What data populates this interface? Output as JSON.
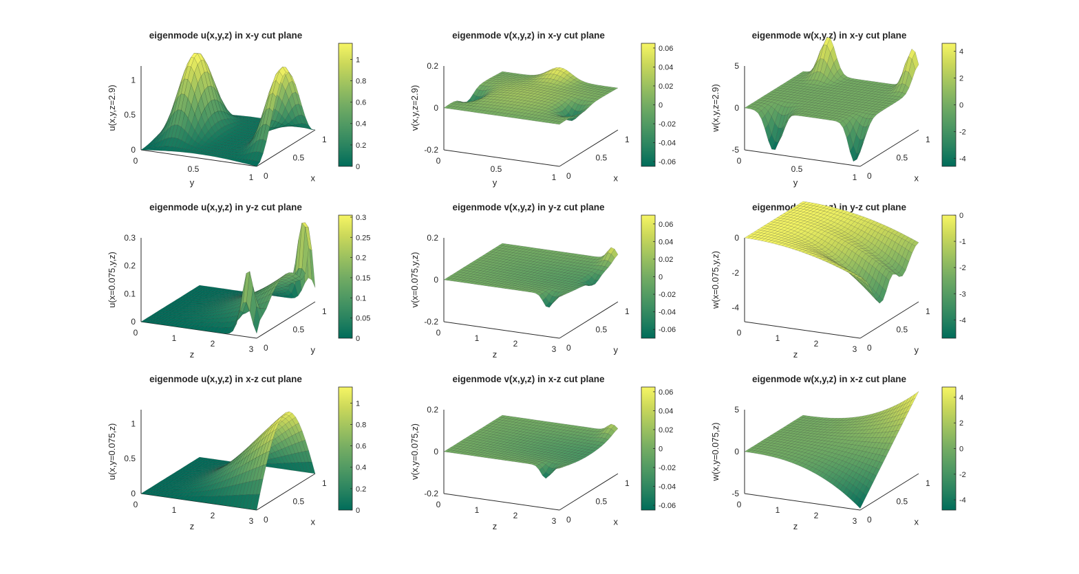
{
  "colors": {
    "colormap": [
      "#006c5a",
      "#2a8460",
      "#4f9963",
      "#74ac63",
      "#9ec25f",
      "#cbd85a",
      "#f6f564"
    ],
    "axis": "#262626",
    "background": "#ffffff"
  },
  "chart_data": [
    {
      "type": "surface",
      "title": "eigenmode u(x,y,z) in x-y cut plane",
      "xlabel": "y",
      "ylabel": "x",
      "zlabel": "u(x,y,z=2.9)",
      "xticks": [
        "0",
        "0.5",
        "1"
      ],
      "yticks": [
        "0",
        "0.5",
        "1"
      ],
      "zticks": [
        "0",
        "0.5",
        "1"
      ],
      "zlim": [
        0,
        1.2
      ],
      "colorbar": {
        "ticks": [
          "0",
          "0.2",
          "0.4",
          "0.6",
          "0.8",
          "1"
        ],
        "min": 0,
        "max": 1.15
      },
      "shape": "u_xy"
    },
    {
      "type": "surface",
      "title": "eigenmode v(x,y,z) in x-y cut plane",
      "xlabel": "y",
      "ylabel": "x",
      "zlabel": "v(x,y,z=2.9)",
      "xticks": [
        "0",
        "0.5",
        "1"
      ],
      "yticks": [
        "0",
        "0.5",
        "1"
      ],
      "zticks": [
        "-0.2",
        "0",
        "0.2"
      ],
      "zlim": [
        -0.2,
        0.2
      ],
      "colorbar": {
        "ticks": [
          "-0.06",
          "-0.04",
          "-0.02",
          "0",
          "0.02",
          "0.04",
          "0.06"
        ],
        "min": -0.065,
        "max": 0.065
      },
      "shape": "v_xy"
    },
    {
      "type": "surface",
      "title": "eigenmode w(x,y,z) in x-y cut plane",
      "xlabel": "y",
      "ylabel": "x",
      "zlabel": "w(x,y,z=2.9)",
      "xticks": [
        "0",
        "0.5",
        "1"
      ],
      "yticks": [
        "0",
        "0.5",
        "1"
      ],
      "zticks": [
        "-5",
        "0",
        "5"
      ],
      "zlim": [
        -5,
        5
      ],
      "colorbar": {
        "ticks": [
          "-4",
          "-2",
          "0",
          "2",
          "4"
        ],
        "min": -4.6,
        "max": 4.6
      },
      "shape": "w_xy"
    },
    {
      "type": "surface",
      "title": "eigenmode u(x,y,z) in y-z cut plane",
      "xlabel": "z",
      "ylabel": "y",
      "zlabel": "u(x=0.075,y,z)",
      "xticks": [
        "0",
        "1",
        "2",
        "3"
      ],
      "yticks": [
        "0",
        "0.5",
        "1"
      ],
      "zticks": [
        "0",
        "0.1",
        "0.2",
        "0.3"
      ],
      "zlim": [
        0,
        0.3
      ],
      "colorbar": {
        "ticks": [
          "0",
          "0.05",
          "0.1",
          "0.15",
          "0.2",
          "0.25",
          "0.3"
        ],
        "min": 0,
        "max": 0.305
      },
      "shape": "u_yz"
    },
    {
      "type": "surface",
      "title": "eigenmode v(x,y,z) in y-z cut plane",
      "xlabel": "z",
      "ylabel": "y",
      "zlabel": "v(x=0.075,y,z)",
      "xticks": [
        "0",
        "1",
        "2",
        "3"
      ],
      "yticks": [
        "0",
        "0.5",
        "1"
      ],
      "zticks": [
        "-0.2",
        "0",
        "0.2"
      ],
      "zlim": [
        -0.2,
        0.2
      ],
      "colorbar": {
        "ticks": [
          "-0.06",
          "-0.04",
          "-0.02",
          "0",
          "0.02",
          "0.04",
          "0.06"
        ],
        "min": -0.07,
        "max": 0.07
      },
      "shape": "v_yz"
    },
    {
      "type": "surface",
      "title": "eigenmode w(x,y,z) in y-z cut plane",
      "xlabel": "z",
      "ylabel": "y",
      "zlabel": "w(x=0.075,y,z)",
      "xticks": [
        "0",
        "1",
        "2",
        "3"
      ],
      "yticks": [
        "0",
        "0.5",
        "1"
      ],
      "zticks": [
        "-4",
        "-2",
        "0"
      ],
      "zlim": [
        -4.8,
        0
      ],
      "colorbar": {
        "ticks": [
          "-4",
          "-3",
          "-2",
          "-1",
          "0"
        ],
        "min": -4.7,
        "max": 0
      },
      "shape": "w_yz"
    },
    {
      "type": "surface",
      "title": "eigenmode u(x,y,z) in x-z cut plane",
      "xlabel": "z",
      "ylabel": "x",
      "zlabel": "u(x,y=0.075,z)",
      "xticks": [
        "0",
        "1",
        "2",
        "3"
      ],
      "yticks": [
        "0",
        "0.5",
        "1"
      ],
      "zticks": [
        "0",
        "0.5",
        "1"
      ],
      "zlim": [
        0,
        1.2
      ],
      "colorbar": {
        "ticks": [
          "0",
          "0.2",
          "0.4",
          "0.6",
          "0.8",
          "1"
        ],
        "min": 0,
        "max": 1.15
      },
      "shape": "u_xz"
    },
    {
      "type": "surface",
      "title": "eigenmode v(x,y,z) in x-z cut plane",
      "xlabel": "z",
      "ylabel": "x",
      "zlabel": "v(x,y=0.075,z)",
      "xticks": [
        "0",
        "1",
        "2",
        "3"
      ],
      "yticks": [
        "0",
        "0.5",
        "1"
      ],
      "zticks": [
        "-0.2",
        "0",
        "0.2"
      ],
      "zlim": [
        -0.2,
        0.2
      ],
      "colorbar": {
        "ticks": [
          "-0.06",
          "-0.04",
          "-0.02",
          "0",
          "0.02",
          "0.04",
          "0.06"
        ],
        "min": -0.065,
        "max": 0.065
      },
      "shape": "v_xz"
    },
    {
      "type": "surface",
      "title": "eigenmode w(x,y,z) in x-z cut plane",
      "xlabel": "z",
      "ylabel": "x",
      "zlabel": "w(x,y=0.075,z)",
      "xticks": [
        "0",
        "1",
        "2",
        "3"
      ],
      "yticks": [
        "0",
        "0.5",
        "1"
      ],
      "zticks": [
        "-5",
        "0",
        "5"
      ],
      "zlim": [
        -5,
        5
      ],
      "colorbar": {
        "ticks": [
          "-4",
          "-2",
          "0",
          "2",
          "4"
        ],
        "min": -4.8,
        "max": 4.8
      },
      "shape": "w_xz"
    }
  ]
}
